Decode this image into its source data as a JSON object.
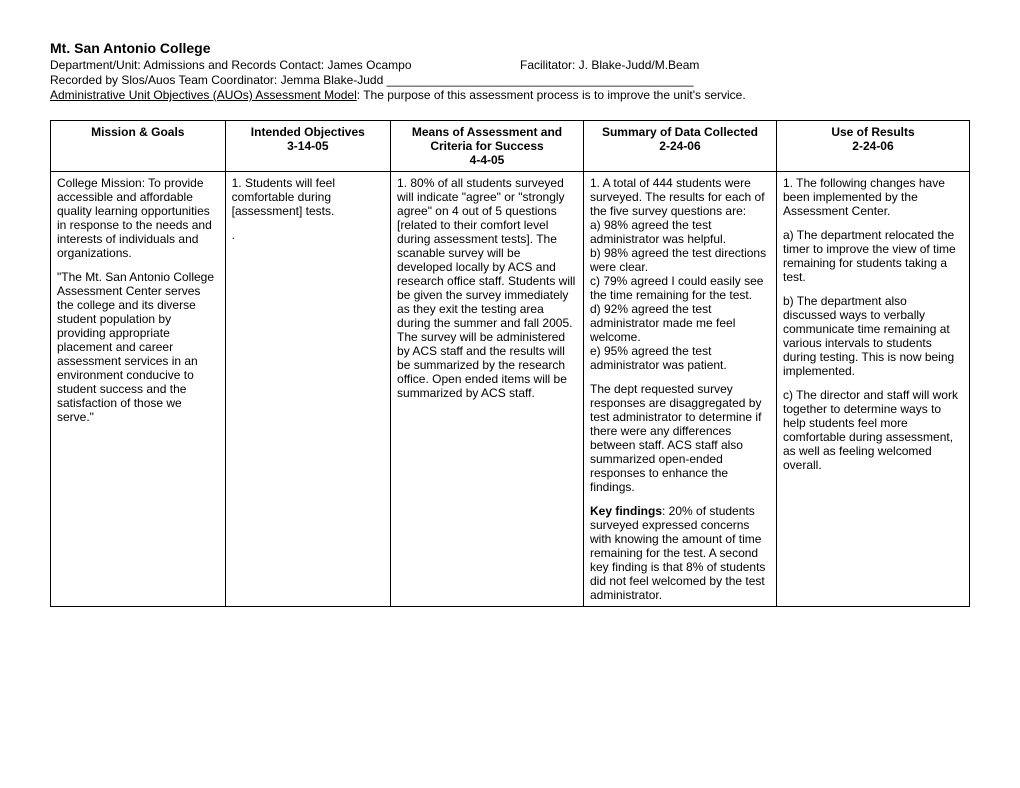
{
  "header": {
    "title": "Mt. San Antonio College",
    "dept_line_left": "Department/Unit: Admissions and Records Contact: James Ocampo",
    "dept_line_right": "Facilitator: J. Blake-Judd/M.Beam",
    "recorded_by": "Recorded by Slos/Auos Team Coordinator: Jemma Blake-Judd ______________________________________________",
    "model_label": "Administrative Unit Objectives (AUOs) Assessment Model",
    "model_desc": ": The purpose of this assessment process is to improve the unit's service."
  },
  "columns": [
    {
      "title": "Mission & Goals",
      "date": ""
    },
    {
      "title": "Intended Objectives",
      "date": "3-14-05"
    },
    {
      "title": "Means of Assessment and Criteria for Success",
      "date": "4-4-05"
    },
    {
      "title": "Summary of Data Collected",
      "date": "2-24-06"
    },
    {
      "title": "Use of Results",
      "date": "2-24-06"
    }
  ],
  "row": {
    "mission": {
      "p1": "College Mission: To provide accessible and affordable quality learning opportunities in response to the needs and interests of individuals and organizations.",
      "p2": "\"The Mt. San Antonio College Assessment Center serves the college and its diverse student population by providing appropriate placement and career assessment services in an environment conducive to student success and the satisfaction of those we serve.\""
    },
    "objectives": {
      "p1": "1. Students will feel comfortable during [assessment] tests.",
      "p2": "."
    },
    "means": {
      "p1": "1.  80% of all students surveyed will indicate \"agree\" or \"strongly agree\" on 4 out of 5 questions [related to their comfort level during assessment tests]. The scanable survey will be developed locally by ACS and research office staff. Students will be given the survey immediately as they exit the testing area during the summer and fall 2005. The survey will be administered by ACS staff and the results will be summarized by the research office. Open ended items will be summarized by ACS staff."
    },
    "summary": {
      "intro": "1. A total of 444 students were surveyed. The results for each of the five survey questions are:",
      "a": "a) 98% agreed the test administrator was helpful.",
      "b": "b) 98% agreed the test directions were clear.",
      "c": "c) 79% agreed I could easily see the time remaining for the test.",
      "d": "d) 92% agreed the test administrator made me feel welcome.",
      "e": "e) 95% agreed the test administrator was patient.",
      "p2": "The dept requested survey responses are disaggregated by test administrator to determine if there were any differences between staff. ACS staff also summarized open-ended responses to enhance the findings.",
      "kf_label": "Key findings",
      "kf_text": ": 20% of students surveyed expressed concerns with knowing the amount of time remaining for the test. A second key finding is that 8% of students did not feel welcomed by the test administrator."
    },
    "use": {
      "intro": "1. The following changes have been implemented by the Assessment Center.",
      "a": "a) The department relocated the timer to improve the view of time remaining for students taking a test.",
      "b": "b) The department also discussed ways to verbally communicate time remaining at various intervals to students during testing. This is now being implemented.",
      "c": "c) The director and staff will work together to determine ways to help students feel more comfortable during assessment, as well as feeling welcomed overall."
    }
  }
}
